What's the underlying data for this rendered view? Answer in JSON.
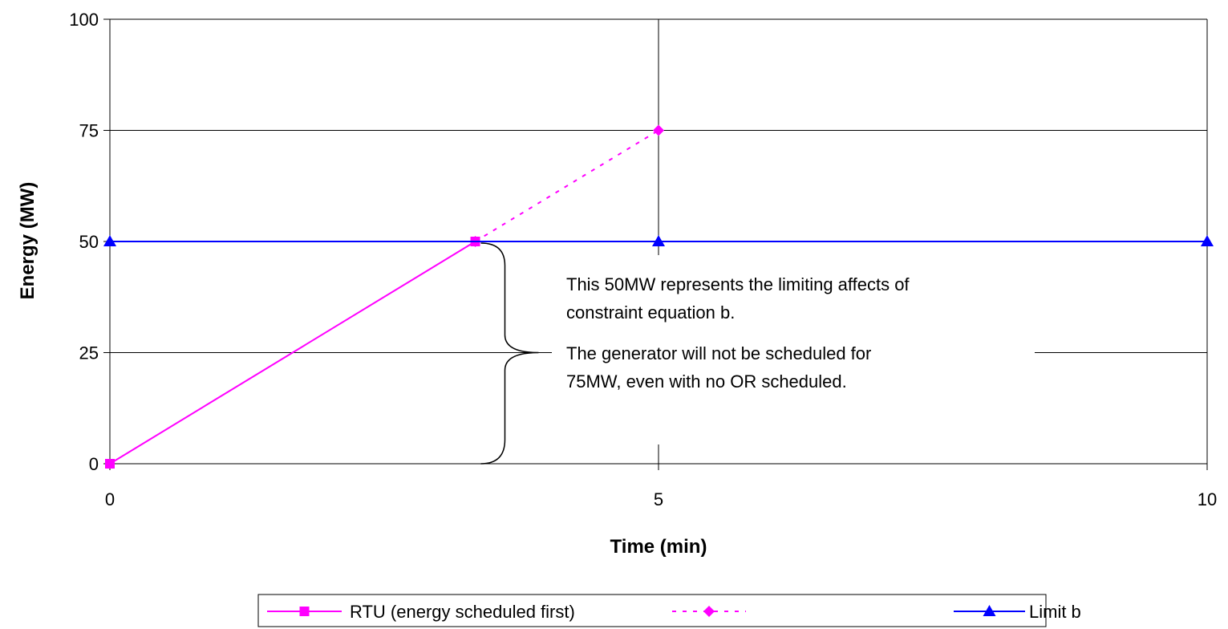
{
  "chart_data": {
    "type": "line",
    "title": "",
    "xlabel": "Time (min)",
    "ylabel": "Energy (MW)",
    "xlim": [
      0,
      10
    ],
    "ylim": [
      0,
      100
    ],
    "x_ticks": [
      0,
      5,
      10
    ],
    "y_ticks": [
      0,
      25,
      50,
      75,
      100
    ],
    "grid": "major both axes",
    "legend_position": "bottom-center",
    "series": [
      {
        "name": "RTU (energy scheduled first)",
        "color": "#ff00ff",
        "line_style": "solid",
        "marker": "square",
        "points": [
          [
            0,
            0
          ],
          [
            3.33,
            50
          ]
        ]
      },
      {
        "name": "",
        "color": "#ff00ff",
        "line_style": "dotted",
        "marker": "diamond",
        "points": [
          [
            3.33,
            50
          ],
          [
            5,
            75
          ]
        ]
      },
      {
        "name": "Limit b",
        "color": "#0000ff",
        "line_style": "solid",
        "marker": "triangle",
        "points": [
          [
            0,
            50
          ],
          [
            5,
            50
          ],
          [
            10,
            50
          ]
        ]
      }
    ],
    "annotation": {
      "brace_from_y": 0,
      "brace_to_y": 50,
      "brace_x": 3.6,
      "lines": [
        "This 50MW represents the limiting affects of",
        "constraint equation b.",
        "The generator will not be scheduled for",
        "75MW, even with no OR scheduled."
      ]
    }
  }
}
